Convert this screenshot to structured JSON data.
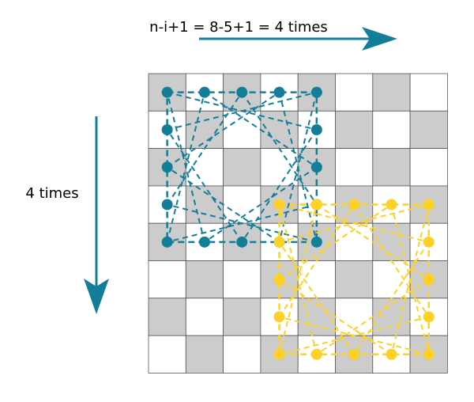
{
  "labels": {
    "top": "n-i+1 = 8-5+1 = 4 times",
    "left": "4 times"
  },
  "colors": {
    "blue": "#137e99",
    "yellow": "#fdd126",
    "gray": "#cccccc",
    "border": "#555555"
  },
  "board": {
    "size": 8
  },
  "windows": [
    {
      "name": "blue-window",
      "color_key": "blue",
      "row": 0,
      "col": 0,
      "size": 5
    },
    {
      "name": "yellow-window",
      "color_key": "yellow",
      "row": 3,
      "col": 3,
      "size": 5
    }
  ]
}
